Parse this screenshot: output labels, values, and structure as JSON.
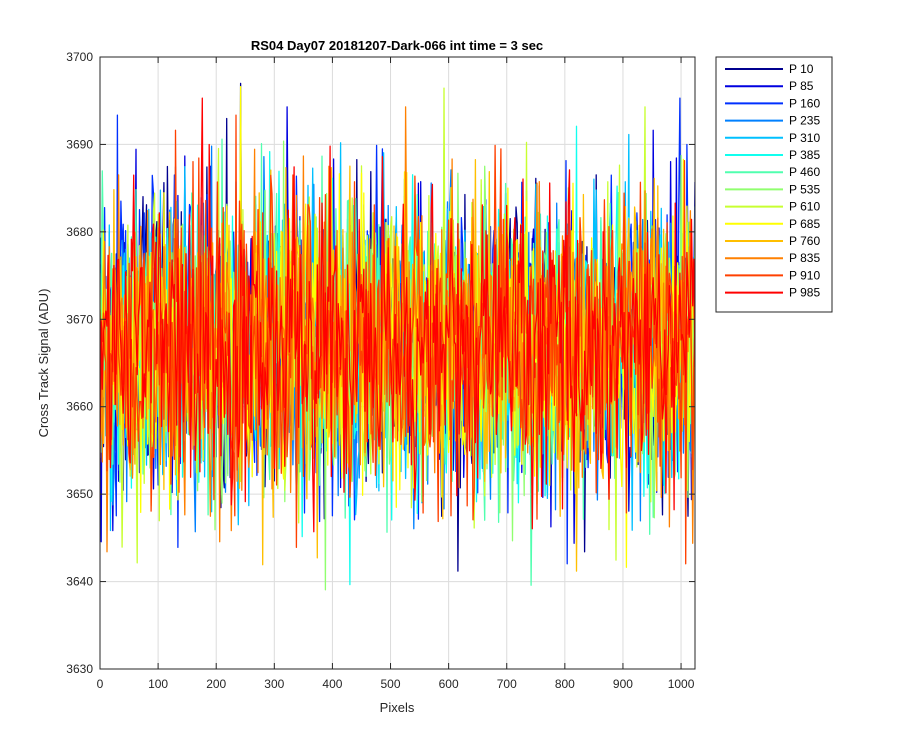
{
  "chart_data": {
    "type": "line",
    "title": "RS04 Day07 20181207-Dark-066 int time = 3 sec",
    "xlabel": "Pixels",
    "ylabel": "Cross Track Signal (ADU)",
    "xlim": [
      0,
      1024
    ],
    "ylim": [
      3630,
      3700
    ],
    "xticks": [
      0,
      100,
      200,
      300,
      400,
      500,
      600,
      700,
      800,
      900,
      1000
    ],
    "yticks": [
      3630,
      3640,
      3650,
      3660,
      3670,
      3680,
      3690,
      3700
    ],
    "grid": true,
    "legend_position": "outside-top-right",
    "signal_summary": {
      "mean": 3667,
      "typical_min": 3650,
      "typical_max": 3688,
      "observed_min": 3638,
      "observed_max": 3697
    },
    "series": [
      {
        "name": "P 10",
        "color": "#00008f"
      },
      {
        "name": "P 85",
        "color": "#0000e0"
      },
      {
        "name": "P 160",
        "color": "#0030ff"
      },
      {
        "name": "P 235",
        "color": "#0080ff"
      },
      {
        "name": "P 310",
        "color": "#00c0ff"
      },
      {
        "name": "P 385",
        "color": "#10ffef"
      },
      {
        "name": "P 460",
        "color": "#50ffaf"
      },
      {
        "name": "P 535",
        "color": "#90ff6f"
      },
      {
        "name": "P 610",
        "color": "#c8ff30"
      },
      {
        "name": "P 685",
        "color": "#ffff00"
      },
      {
        "name": "P 760",
        "color": "#ffbf00"
      },
      {
        "name": "P 835",
        "color": "#ff8000"
      },
      {
        "name": "P 910",
        "color": "#ff4000"
      },
      {
        "name": "P 985",
        "color": "#ff0000"
      }
    ]
  }
}
